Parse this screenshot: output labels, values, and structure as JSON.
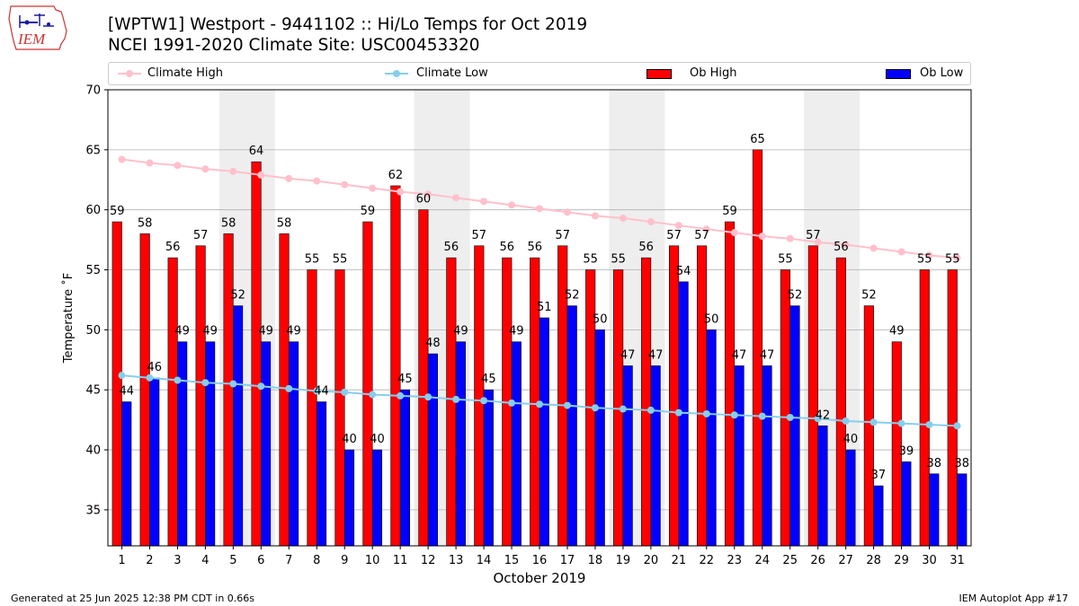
{
  "header": {
    "title_line1": "[WPTW1] Westport - 9441102 :: Hi/Lo Temps for Oct 2019",
    "title_line2": "NCEI 1991-2020 Climate Site: USC00453320",
    "logo_text": "IEM"
  },
  "footer": {
    "left": "Generated at 25 Jun 2025 12:38 PM CDT in 0.66s",
    "right": "IEM Autoplot App #17"
  },
  "legend": [
    {
      "name": "Climate High",
      "kind": "line",
      "color": "#ffc0cb"
    },
    {
      "name": "Climate Low",
      "kind": "line",
      "color": "#87ceeb"
    },
    {
      "name": "Ob High",
      "kind": "bar",
      "color": "#ff0000"
    },
    {
      "name": "Ob Low",
      "kind": "bar",
      "color": "#0000ff"
    }
  ],
  "chart_data": {
    "type": "bar",
    "xlabel": "October 2019",
    "ylabel": "Temperature ˚F",
    "ylim": [
      32,
      70
    ],
    "yticks": [
      35,
      40,
      45,
      50,
      55,
      60,
      65,
      70
    ],
    "grid": true,
    "legend_position": "top",
    "weekend_shading": [
      [
        5,
        6
      ],
      [
        12,
        13
      ],
      [
        19,
        20
      ],
      [
        26,
        27
      ]
    ],
    "categories": [
      1,
      2,
      3,
      4,
      5,
      6,
      7,
      8,
      9,
      10,
      11,
      12,
      13,
      14,
      15,
      16,
      17,
      18,
      19,
      20,
      21,
      22,
      23,
      24,
      25,
      26,
      27,
      28,
      29,
      30,
      31
    ],
    "series": [
      {
        "name": "Ob High",
        "type": "bar",
        "color": "#ff0000",
        "values": [
          59,
          58,
          56,
          57,
          58,
          64,
          58,
          55,
          55,
          59,
          62,
          60,
          56,
          57,
          56,
          56,
          57,
          55,
          55,
          56,
          57,
          57,
          59,
          65,
          55,
          57,
          56,
          52,
          49,
          55,
          55
        ]
      },
      {
        "name": "Ob Low",
        "type": "bar",
        "color": "#0000ff",
        "values": [
          44,
          46,
          49,
          49,
          52,
          49,
          49,
          44,
          40,
          40,
          45,
          48,
          49,
          45,
          49,
          51,
          52,
          50,
          47,
          47,
          54,
          50,
          47,
          47,
          52,
          42,
          40,
          37,
          39,
          38,
          38
        ]
      },
      {
        "name": "Climate High",
        "type": "line",
        "color": "#ffc0cb",
        "values": [
          64.2,
          63.9,
          63.7,
          63.4,
          63.2,
          62.9,
          62.6,
          62.4,
          62.1,
          61.8,
          61.5,
          61.3,
          61.0,
          60.7,
          60.4,
          60.1,
          59.8,
          59.5,
          59.3,
          59.0,
          58.7,
          58.4,
          58.1,
          57.8,
          57.6,
          57.3,
          57.1,
          56.8,
          56.5,
          56.2,
          56.0
        ]
      },
      {
        "name": "Climate Low",
        "type": "line",
        "color": "#87ceeb",
        "values": [
          46.2,
          46.0,
          45.8,
          45.6,
          45.5,
          45.3,
          45.1,
          44.9,
          44.8,
          44.6,
          44.5,
          44.4,
          44.2,
          44.1,
          43.9,
          43.8,
          43.7,
          43.5,
          43.4,
          43.3,
          43.1,
          43.0,
          42.9,
          42.8,
          42.7,
          42.6,
          42.4,
          42.3,
          42.2,
          42.1,
          42.0
        ]
      }
    ]
  }
}
